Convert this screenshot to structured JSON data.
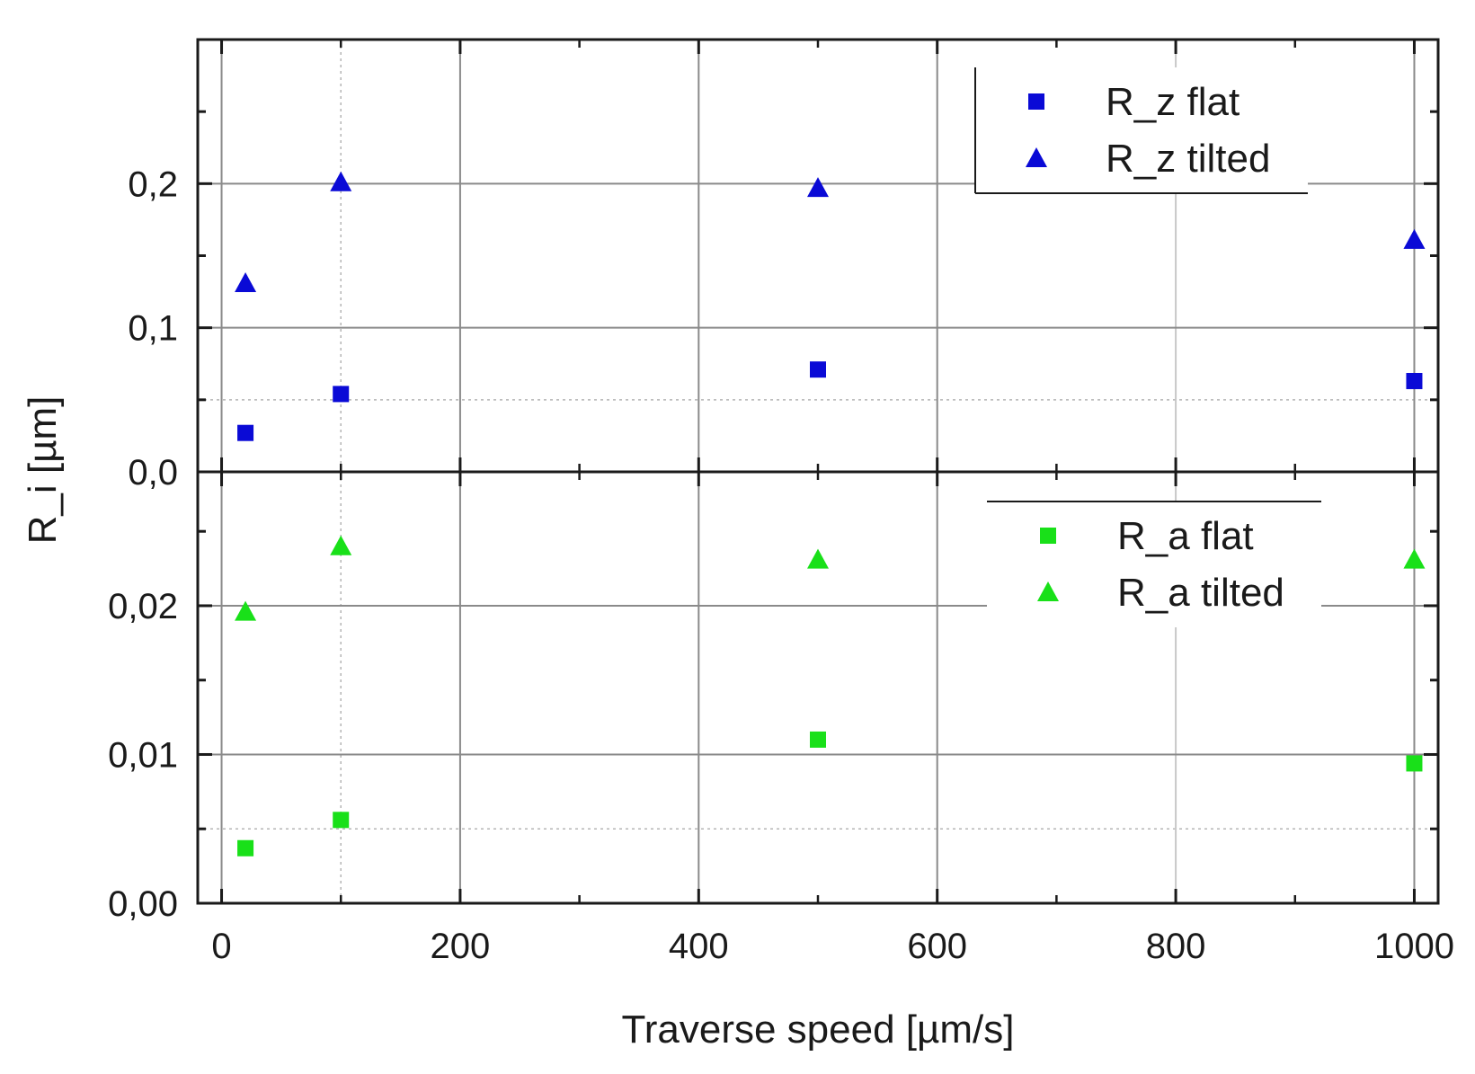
{
  "chart_data": {
    "type": "scatter",
    "xlabel": "Traverse speed [µm/s]",
    "ylabel": "R_i [µm]",
    "xlim": [
      -20,
      1020
    ],
    "x_ticks": [
      0,
      200,
      400,
      600,
      800,
      1000
    ],
    "x_tick_labels": [
      "0",
      "200",
      "400",
      "600",
      "800",
      "1000"
    ],
    "panels": [
      {
        "id": "top",
        "ylim": [
          0,
          0.3
        ],
        "y_ticks": [
          0.0,
          0.1,
          0.2
        ],
        "y_tick_labels": [
          "0,0",
          "0,1",
          "0,2"
        ],
        "legend_position": "top-right",
        "series": [
          {
            "name": "R_z flat",
            "marker": "square",
            "color": "#0a0ad6",
            "x": [
              20,
              100,
              500,
              1000
            ],
            "y": [
              0.027,
              0.054,
              0.071,
              0.063
            ]
          },
          {
            "name": "R_z tilted",
            "marker": "triangle",
            "color": "#0a0ad6",
            "x": [
              20,
              100,
              500,
              1000
            ],
            "y": [
              0.131,
              0.201,
              0.197,
              0.161
            ]
          }
        ]
      },
      {
        "id": "bottom",
        "ylim": [
          0,
          0.029
        ],
        "y_ticks": [
          0.0,
          0.01,
          0.02
        ],
        "y_tick_labels": [
          "0,00",
          "0,01",
          "0,02"
        ],
        "legend_position": "top-right",
        "series": [
          {
            "name": "R_a flat",
            "marker": "square",
            "color": "#19e019",
            "x": [
              20,
              100,
              500,
              1000
            ],
            "y": [
              0.0037,
              0.0056,
              0.011,
              0.0094
            ]
          },
          {
            "name": "R_a tilted",
            "marker": "triangle",
            "color": "#19e019",
            "x": [
              20,
              100,
              500,
              1000
            ],
            "y": [
              0.0196,
              0.024,
              0.0231,
              0.0231
            ]
          }
        ]
      }
    ]
  }
}
